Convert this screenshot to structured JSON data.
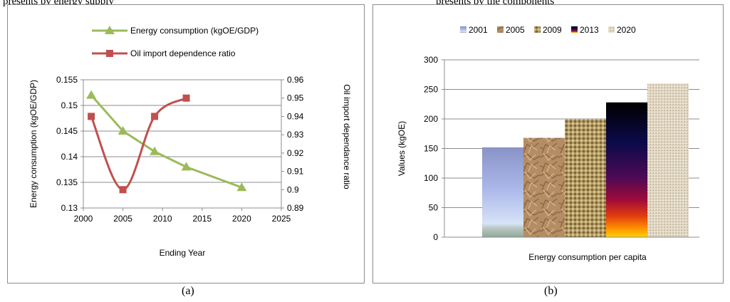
{
  "header_clip": {
    "left": "presents by energy supply",
    "right": "presents by the components"
  },
  "captions": {
    "a": "(a)",
    "b": "(b)"
  },
  "chart_data": [
    {
      "type": "line",
      "panel": "a",
      "title": "",
      "xlabel": "Ending Year",
      "ylabel": "Energy consumption (kgOE/GDP)",
      "y2label": "Oil import dependance ratio",
      "xlim": [
        2000,
        2025
      ],
      "xticks": [
        "2000",
        "2005",
        "2010",
        "2015",
        "2020",
        "2025"
      ],
      "ylim": [
        0.13,
        0.155
      ],
      "yticks": [
        "0.13",
        "0.135",
        "0.14",
        "0.145",
        "0.15",
        "0.155"
      ],
      "y2lim": [
        0.89,
        0.96
      ],
      "y2ticks": [
        "0.89",
        "0.9",
        "0.91",
        "0.92",
        "0.93",
        "0.94",
        "0.95",
        "0.96"
      ],
      "grid": true,
      "legend_position": "top",
      "series": [
        {
          "name": "Energy consumption (kgOE/GDP)",
          "axis": "left",
          "color": "#9bbb59",
          "marker": "triangle",
          "x": [
            2001,
            2005,
            2009,
            2013,
            2020
          ],
          "y": [
            0.152,
            0.145,
            0.141,
            0.138,
            0.134
          ]
        },
        {
          "name": "Oil import dependence ratio",
          "axis": "right",
          "color": "#c0504d",
          "marker": "square",
          "smooth": true,
          "x": [
            2001,
            2005,
            2009,
            2013
          ],
          "y": [
            0.94,
            0.9,
            0.94,
            0.95
          ]
        }
      ]
    },
    {
      "type": "bar",
      "panel": "b",
      "title": "",
      "xlabel": "Energy consumption per capita",
      "ylabel": "Values (kgOE)",
      "ylim": [
        0,
        300
      ],
      "yticks": [
        "0",
        "50",
        "100",
        "150",
        "200",
        "250",
        "300"
      ],
      "grid": true,
      "legend_position": "top",
      "series": [
        {
          "name": "2001",
          "value": 152,
          "fill": "gradient-blue"
        },
        {
          "name": "2005",
          "value": 168,
          "fill": "texture-paper"
        },
        {
          "name": "2009",
          "value": 200,
          "fill": "texture-burlap"
        },
        {
          "name": "2013",
          "value": 228,
          "fill": "gradient-fire"
        },
        {
          "name": "2020",
          "value": 260,
          "fill": "texture-canvas"
        }
      ]
    }
  ]
}
